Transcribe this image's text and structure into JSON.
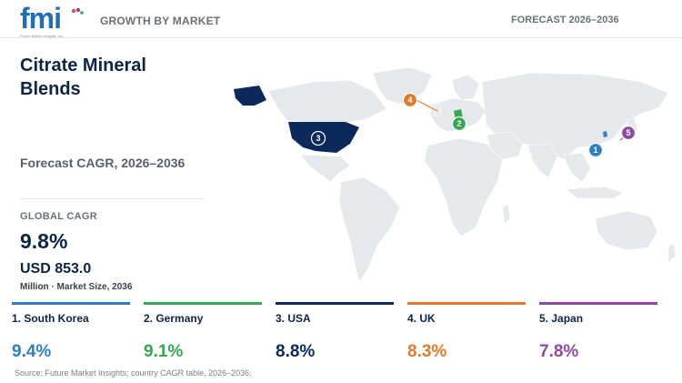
{
  "header": {
    "logo_text": "fmi",
    "logo_subtext": "Future Market Insights, Inc.",
    "section_label": "GROWTH BY MARKET",
    "forecast_label": "FORECAST 2026–2036"
  },
  "summary": {
    "title": "Citrate Mineral Blends",
    "forecast_cagr_label": "Forecast CAGR, 2026–2036",
    "global_cagr_label": "GLOBAL CAGR",
    "global_cagr_value": "9.8%",
    "market_size_value": "USD 853.0",
    "market_size_unit": "Million · Market Size, 2036"
  },
  "map": {
    "markers": [
      {
        "rank": "1",
        "country": "South Korea",
        "color": "#2e7fc0"
      },
      {
        "rank": "2",
        "country": "Germany",
        "color": "#34a853"
      },
      {
        "rank": "3",
        "country": "USA",
        "color": "#0b2a5b"
      },
      {
        "rank": "4",
        "country": "UK",
        "color": "#e07a2c"
      },
      {
        "rank": "5",
        "country": "Japan",
        "color": "#8e4aa3"
      }
    ]
  },
  "countries": [
    {
      "label": "1. South Korea",
      "cagr": "9.4%",
      "color": "#2e7fc0"
    },
    {
      "label": "2. Germany",
      "cagr": "9.1%",
      "color": "#34a853"
    },
    {
      "label": "3. USA",
      "cagr": "8.8%",
      "color": "#0b2a5b"
    },
    {
      "label": "4. UK",
      "cagr": "8.3%",
      "color": "#e07a2c"
    },
    {
      "label": "5. Japan",
      "cagr": "7.8%",
      "color": "#8e4aa3"
    }
  ],
  "source": "Source: Future Market Insights; country CAGR table, 2026–2036."
}
